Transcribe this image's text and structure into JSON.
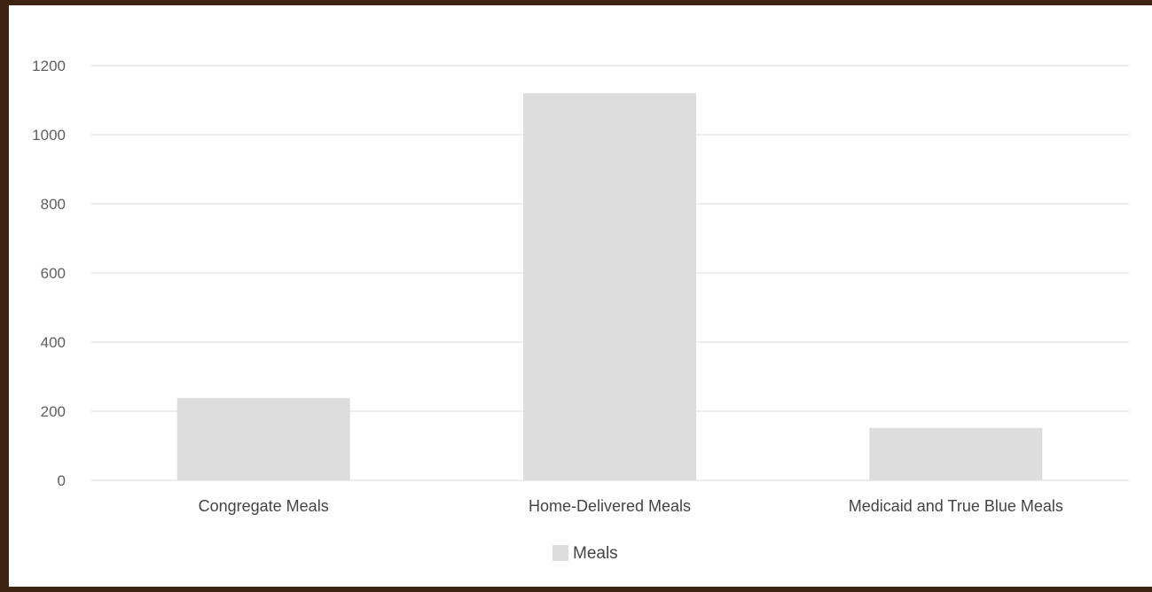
{
  "colors": {
    "frame": "#3d2412",
    "background": "#ffffff",
    "bar": "#dddddd",
    "grid": "#e3e3e3",
    "text": "#5f5f5f"
  },
  "chart_data": {
    "type": "bar",
    "title": "",
    "xlabel": "",
    "ylabel": "",
    "categories": [
      "Congregate Meals",
      "Home-Delivered Meals",
      "Medicaid and True Blue Meals"
    ],
    "series": [
      {
        "name": "Meals",
        "values": [
          238,
          1120,
          152
        ]
      }
    ],
    "ylim": [
      0,
      1200
    ],
    "yticks": [
      "0",
      "200",
      "400",
      "600",
      "800",
      "1000",
      "1200"
    ],
    "grid": true,
    "legend_position": "bottom"
  }
}
